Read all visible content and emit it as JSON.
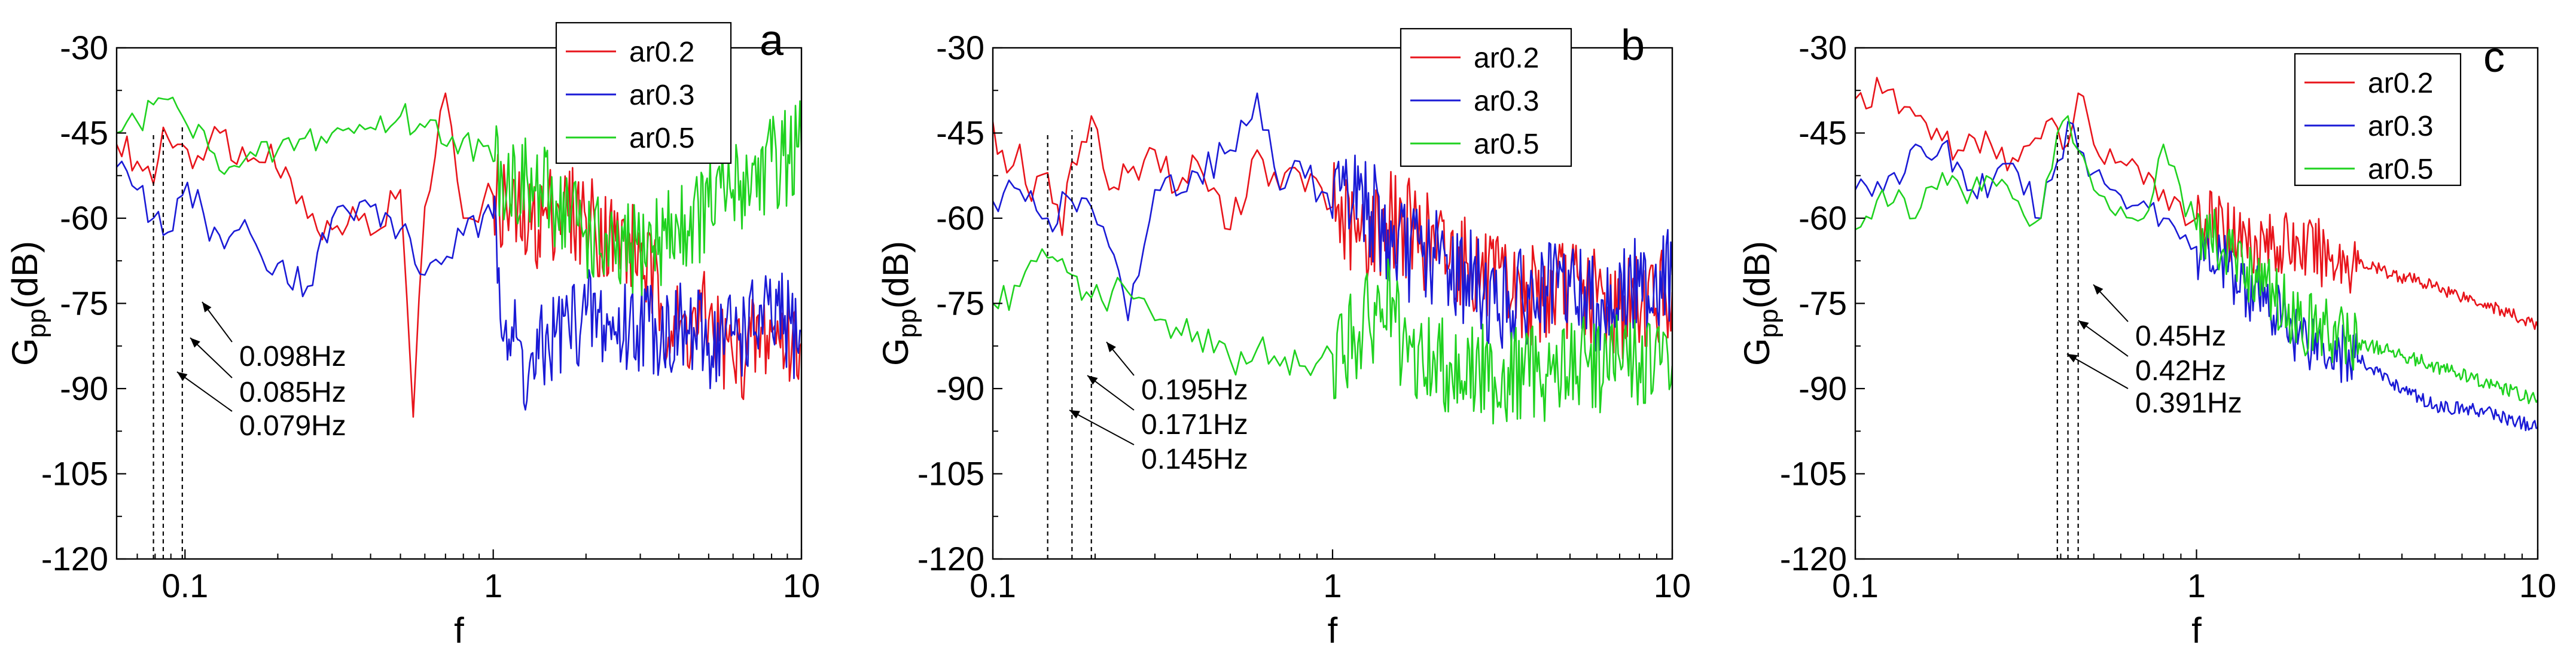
{
  "chart_data": [
    {
      "type": "line",
      "panel_label": "a",
      "xscale": "log",
      "xlim": [
        0.06,
        10
      ],
      "ylim": [
        -120,
        -30
      ],
      "xticks": [
        0.1,
        1,
        10
      ],
      "xtick_labels": [
        "0.1",
        "1",
        "10"
      ],
      "yticks": [
        -120,
        -105,
        -90,
        -75,
        -60,
        -45,
        -30
      ],
      "ytick_labels": [
        "-120",
        "-105",
        "-90",
        "-75",
        "-60",
        "-45",
        "-30"
      ],
      "xlabel": "f",
      "ylabel_main": "G",
      "ylabel_sub": "pp",
      "ylabel_tail": "(dB)",
      "legend": [
        "ar0.2",
        "ar0.3",
        "ar0.5"
      ],
      "colors": [
        "#e8141b",
        "#1a1ad6",
        "#1fd21f"
      ],
      "annotations": [
        {
          "text": "0.098Hz",
          "x": 0.098
        },
        {
          "text": "0.085Hz",
          "x": 0.085
        },
        {
          "text": "0.079Hz",
          "x": 0.079
        }
      ],
      "series": [
        {
          "name": "ar0.2",
          "points": [
            [
              0.06,
              -47
            ],
            [
              0.07,
              -50
            ],
            [
              0.079,
              -54
            ],
            [
              0.085,
              -44
            ],
            [
              0.098,
              -47
            ],
            [
              0.11,
              -49
            ],
            [
              0.13,
              -45
            ],
            [
              0.16,
              -50
            ],
            [
              0.19,
              -47
            ],
            [
              0.22,
              -53
            ],
            [
              0.25,
              -60
            ],
            [
              0.3,
              -62
            ],
            [
              0.35,
              -58
            ],
            [
              0.4,
              -63
            ],
            [
              0.5,
              -55
            ],
            [
              0.55,
              -95
            ],
            [
              0.6,
              -58
            ],
            [
              0.7,
              -38
            ],
            [
              0.8,
              -60
            ],
            [
              1.0,
              -56
            ],
            [
              1.3,
              -62
            ],
            [
              1.6,
              -58
            ],
            [
              2.0,
              -60
            ],
            [
              2.5,
              -64
            ],
            [
              3.0,
              -66
            ],
            [
              3.5,
              -75
            ],
            [
              4.0,
              -80
            ],
            [
              5.0,
              -78
            ],
            [
              6.0,
              -85
            ],
            [
              8.0,
              -80
            ],
            [
              10.0,
              -82
            ]
          ]
        },
        {
          "name": "ar0.3",
          "points": [
            [
              0.06,
              -51
            ],
            [
              0.07,
              -55
            ],
            [
              0.079,
              -60
            ],
            [
              0.085,
              -63
            ],
            [
              0.098,
              -56
            ],
            [
              0.11,
              -55
            ],
            [
              0.12,
              -64
            ],
            [
              0.15,
              -62
            ],
            [
              0.2,
              -68
            ],
            [
              0.25,
              -72
            ],
            [
              0.3,
              -60
            ],
            [
              0.4,
              -58
            ],
            [
              0.5,
              -62
            ],
            [
              0.6,
              -70
            ],
            [
              0.8,
              -63
            ],
            [
              1.0,
              -60
            ],
            [
              1.1,
              -78
            ],
            [
              1.3,
              -88
            ],
            [
              1.6,
              -80
            ],
            [
              2.0,
              -77
            ],
            [
              2.5,
              -80
            ],
            [
              3.0,
              -78
            ],
            [
              4.0,
              -80
            ],
            [
              5.0,
              -82
            ],
            [
              6.0,
              -80
            ],
            [
              8.0,
              -78
            ],
            [
              10.0,
              -80
            ]
          ]
        },
        {
          "name": "ar0.5",
          "points": [
            [
              0.06,
              -45
            ],
            [
              0.07,
              -43
            ],
            [
              0.079,
              -40
            ],
            [
              0.085,
              -39
            ],
            [
              0.098,
              -42
            ],
            [
              0.12,
              -48
            ],
            [
              0.15,
              -51
            ],
            [
              0.2,
              -48
            ],
            [
              0.3,
              -45
            ],
            [
              0.4,
              -44
            ],
            [
              0.5,
              -42
            ],
            [
              0.6,
              -44
            ],
            [
              0.8,
              -46
            ],
            [
              1.0,
              -50
            ],
            [
              1.3,
              -55
            ],
            [
              1.6,
              -57
            ],
            [
              2.0,
              -62
            ],
            [
              2.5,
              -68
            ],
            [
              3.0,
              -65
            ],
            [
              4.0,
              -62
            ],
            [
              5.0,
              -58
            ],
            [
              6.0,
              -55
            ],
            [
              8.0,
              -50
            ],
            [
              10.0,
              -48
            ]
          ]
        }
      ]
    },
    {
      "type": "line",
      "panel_label": "b",
      "xscale": "log",
      "xlim": [
        0.1,
        10
      ],
      "ylim": [
        -120,
        -30
      ],
      "xticks": [
        0.1,
        1,
        10
      ],
      "xtick_labels": [
        "0.1",
        "1",
        "10"
      ],
      "yticks": [
        -120,
        -105,
        -90,
        -75,
        -60,
        -45,
        -30
      ],
      "ytick_labels": [
        "-120",
        "-105",
        "-90",
        "-75",
        "-60",
        "-45",
        "-30"
      ],
      "xlabel": "f",
      "ylabel_main": "G",
      "ylabel_sub": "pp",
      "ylabel_tail": "(dB)",
      "legend": [
        "ar0.2",
        "ar0.3",
        "ar0.5"
      ],
      "colors": [
        "#e8141b",
        "#1a1ad6",
        "#1fd21f"
      ],
      "annotations": [
        {
          "text": "0.195Hz",
          "x": 0.195
        },
        {
          "text": "0.171Hz",
          "x": 0.171
        },
        {
          "text": "0.145Hz",
          "x": 0.145
        }
      ],
      "series": [
        {
          "name": "ar0.2",
          "points": [
            [
              0.1,
              -43
            ],
            [
              0.11,
              -52
            ],
            [
              0.12,
              -47
            ],
            [
              0.13,
              -57
            ],
            [
              0.145,
              -52
            ],
            [
              0.16,
              -63
            ],
            [
              0.171,
              -50
            ],
            [
              0.195,
              -42
            ],
            [
              0.22,
              -55
            ],
            [
              0.25,
              -52
            ],
            [
              0.3,
              -48
            ],
            [
              0.35,
              -55
            ],
            [
              0.4,
              -50
            ],
            [
              0.5,
              -62
            ],
            [
              0.6,
              -48
            ],
            [
              0.7,
              -55
            ],
            [
              0.8,
              -52
            ],
            [
              1.0,
              -58
            ],
            [
              1.2,
              -64
            ],
            [
              1.5,
              -60
            ],
            [
              2.0,
              -65
            ],
            [
              2.5,
              -68
            ],
            [
              3.0,
              -72
            ],
            [
              4.0,
              -74
            ],
            [
              5.0,
              -72
            ],
            [
              7.0,
              -76
            ],
            [
              10.0,
              -73
            ]
          ]
        },
        {
          "name": "ar0.3",
          "points": [
            [
              0.1,
              -57
            ],
            [
              0.12,
              -55
            ],
            [
              0.145,
              -60
            ],
            [
              0.171,
              -57
            ],
            [
              0.195,
              -58
            ],
            [
              0.22,
              -65
            ],
            [
              0.25,
              -78
            ],
            [
              0.3,
              -55
            ],
            [
              0.4,
              -52
            ],
            [
              0.5,
              -48
            ],
            [
              0.6,
              -38
            ],
            [
              0.7,
              -55
            ],
            [
              0.8,
              -50
            ],
            [
              1.0,
              -60
            ],
            [
              1.2,
              -55
            ],
            [
              1.5,
              -65
            ],
            [
              2.0,
              -67
            ],
            [
              2.5,
              -70
            ],
            [
              3.0,
              -75
            ],
            [
              4.0,
              -74
            ],
            [
              5.0,
              -72
            ],
            [
              6.0,
              -75
            ],
            [
              8.0,
              -72
            ],
            [
              10.0,
              -70
            ]
          ]
        },
        {
          "name": "ar0.5",
          "points": [
            [
              0.1,
              -75
            ],
            [
              0.12,
              -72
            ],
            [
              0.145,
              -67
            ],
            [
              0.171,
              -70
            ],
            [
              0.195,
              -74
            ],
            [
              0.25,
              -73
            ],
            [
              0.3,
              -78
            ],
            [
              0.4,
              -80
            ],
            [
              0.5,
              -85
            ],
            [
              0.6,
              -83
            ],
            [
              0.7,
              -86
            ],
            [
              0.8,
              -86
            ],
            [
              1.0,
              -84
            ],
            [
              1.2,
              -80
            ],
            [
              1.4,
              -76
            ],
            [
              1.5,
              -74
            ],
            [
              1.6,
              -86
            ],
            [
              2.0,
              -85
            ],
            [
              3.0,
              -88
            ],
            [
              4.0,
              -87
            ],
            [
              5.0,
              -86
            ],
            [
              7.0,
              -85
            ],
            [
              10.0,
              -86
            ]
          ]
        }
      ]
    },
    {
      "type": "line",
      "panel_label": "c",
      "xscale": "log",
      "xlim": [
        0.1,
        10
      ],
      "ylim": [
        -120,
        -30
      ],
      "xticks": [
        0.1,
        1,
        10
      ],
      "xtick_labels": [
        "0.1",
        "1",
        "10"
      ],
      "yticks": [
        -120,
        -105,
        -90,
        -75,
        -60,
        -45,
        -30
      ],
      "ytick_labels": [
        "-120",
        "-105",
        "-90",
        "-75",
        "-60",
        "-45",
        "-30"
      ],
      "xlabel": "f",
      "ylabel_main": "G",
      "ylabel_sub": "pp",
      "ylabel_tail": "(dB)",
      "legend": [
        "ar0.2",
        "ar0.3",
        "ar0.5"
      ],
      "colors": [
        "#e8141b",
        "#1a1ad6",
        "#1fd21f"
      ],
      "annotations": [
        {
          "text": "0.45Hz",
          "x": 0.45
        },
        {
          "text": "0.42Hz",
          "x": 0.42
        },
        {
          "text": "0.391Hz",
          "x": 0.391
        }
      ],
      "series": [
        {
          "name": "ar0.2",
          "points": [
            [
              0.1,
              -39
            ],
            [
              0.12,
              -38
            ],
            [
              0.15,
              -42
            ],
            [
              0.2,
              -48
            ],
            [
              0.25,
              -47
            ],
            [
              0.3,
              -50
            ],
            [
              0.35,
              -46
            ],
            [
              0.391,
              -44
            ],
            [
              0.42,
              -47
            ],
            [
              0.45,
              -38
            ],
            [
              0.5,
              -47
            ],
            [
              0.6,
              -50
            ],
            [
              0.7,
              -54
            ],
            [
              0.8,
              -55
            ],
            [
              1.0,
              -60
            ],
            [
              1.2,
              -62
            ],
            [
              1.5,
              -64
            ],
            [
              2.0,
              -65
            ],
            [
              3.0,
              -68
            ],
            [
              5.0,
              -72
            ],
            [
              7.0,
              -75
            ],
            [
              10.0,
              -79
            ]
          ]
        },
        {
          "name": "ar0.3",
          "points": [
            [
              0.1,
              -55
            ],
            [
              0.13,
              -52
            ],
            [
              0.18,
              -47
            ],
            [
              0.22,
              -55
            ],
            [
              0.3,
              -52
            ],
            [
              0.35,
              -60
            ],
            [
              0.391,
              -50
            ],
            [
              0.42,
              -43
            ],
            [
              0.45,
              -48
            ],
            [
              0.5,
              -52
            ],
            [
              0.6,
              -56
            ],
            [
              0.7,
              -57
            ],
            [
              0.8,
              -60
            ],
            [
              1.0,
              -65
            ],
            [
              1.3,
              -70
            ],
            [
              1.6,
              -75
            ],
            [
              2.0,
              -80
            ],
            [
              3.0,
              -85
            ],
            [
              4.0,
              -90
            ],
            [
              5.0,
              -93
            ],
            [
              7.0,
              -94
            ],
            [
              10.0,
              -97
            ]
          ]
        },
        {
          "name": "ar0.5",
          "points": [
            [
              0.1,
              -62
            ],
            [
              0.12,
              -55
            ],
            [
              0.15,
              -60
            ],
            [
              0.18,
              -52
            ],
            [
              0.22,
              -55
            ],
            [
              0.25,
              -53
            ],
            [
              0.3,
              -57
            ],
            [
              0.35,
              -60
            ],
            [
              0.391,
              -45
            ],
            [
              0.42,
              -42
            ],
            [
              0.45,
              -48
            ],
            [
              0.5,
              -55
            ],
            [
              0.6,
              -58
            ],
            [
              0.7,
              -60
            ],
            [
              0.8,
              -47
            ],
            [
              1.0,
              -62
            ],
            [
              1.3,
              -67
            ],
            [
              1.6,
              -72
            ],
            [
              2.0,
              -78
            ],
            [
              3.0,
              -82
            ],
            [
              4.0,
              -84
            ],
            [
              5.0,
              -86
            ],
            [
              7.0,
              -89
            ],
            [
              10.0,
              -92
            ]
          ]
        }
      ]
    }
  ]
}
